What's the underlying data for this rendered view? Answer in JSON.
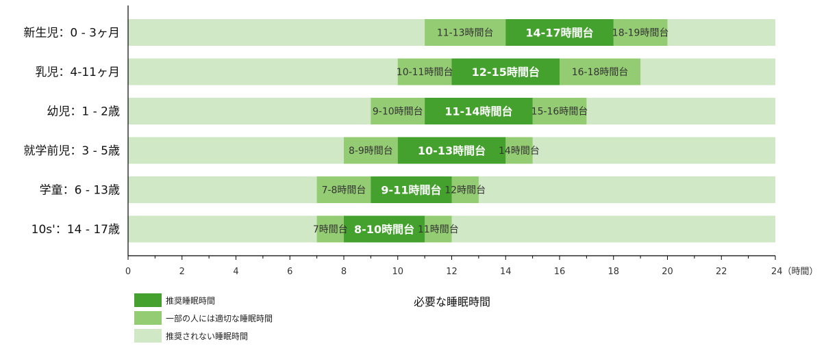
{
  "chart_data": {
    "type": "bar",
    "orientation": "horizontal-range",
    "xlabel": "必要な睡眠時間",
    "xunit": "（時間）",
    "xlim": [
      0,
      24
    ],
    "xticks": [
      0,
      2,
      4,
      6,
      8,
      10,
      12,
      14,
      16,
      18,
      20,
      22,
      24
    ],
    "xtick_labels": [
      "0",
      "2",
      "4",
      "6",
      "8",
      "10",
      "12",
      "14",
      "16",
      "18",
      "20",
      "22",
      "24（時間）"
    ],
    "grid": false,
    "legend_position": "bottom-left",
    "colors": {
      "recommended": "#45a12e",
      "appropriate": "#94cc73",
      "not_recommended": "#d0e8c6",
      "label_dark": "#333333",
      "label_light": "#ffffff"
    },
    "legend": [
      {
        "key": "recommended",
        "label": "推奨睡眠時間"
      },
      {
        "key": "appropriate",
        "label": "一部の人には適切な睡眠時間"
      },
      {
        "key": "not_recommended",
        "label": "推奨されない睡眠時間"
      }
    ],
    "categories": [
      {
        "label": "新生児：0 - 3ヶ月",
        "low": {
          "range": [
            11,
            14
          ],
          "label": "11-13時間台"
        },
        "recommended": {
          "range": [
            14,
            18
          ],
          "label": "14-17時間台"
        },
        "high": {
          "range": [
            18,
            20
          ],
          "label": "18-19時間台"
        }
      },
      {
        "label": "乳児：4-11ヶ月",
        "low": {
          "range": [
            10,
            12
          ],
          "label": "10-11時間台"
        },
        "recommended": {
          "range": [
            12,
            16
          ],
          "label": "12-15時間台"
        },
        "high": {
          "range": [
            16,
            19
          ],
          "label": "16-18時間台"
        }
      },
      {
        "label": "幼児：1 - 2歳",
        "low": {
          "range": [
            9,
            11
          ],
          "label": "9-10時間台"
        },
        "recommended": {
          "range": [
            11,
            15
          ],
          "label": "11-14時間台"
        },
        "high": {
          "range": [
            15,
            17
          ],
          "label": "15-16時間台"
        }
      },
      {
        "label": "就学前児：3 - 5歳",
        "low": {
          "range": [
            8,
            10
          ],
          "label": "8-9時間台"
        },
        "recommended": {
          "range": [
            10,
            14
          ],
          "label": "10-13時間台"
        },
        "high": {
          "range": [
            14,
            15
          ],
          "label": "14時間台"
        }
      },
      {
        "label": "学童：6 - 13歳",
        "low": {
          "range": [
            7,
            9
          ],
          "label": "7-8時間台"
        },
        "recommended": {
          "range": [
            9,
            12
          ],
          "label": "9-11時間台"
        },
        "high": {
          "range": [
            12,
            13
          ],
          "label": "12時間台"
        }
      },
      {
        "label": "10s'：14 - 17歳",
        "low": {
          "range": [
            7,
            8
          ],
          "label": "7時間台"
        },
        "recommended": {
          "range": [
            8,
            11
          ],
          "label": "8-10時間台"
        },
        "high": {
          "range": [
            11,
            12
          ],
          "label": "11時間台"
        }
      }
    ]
  }
}
